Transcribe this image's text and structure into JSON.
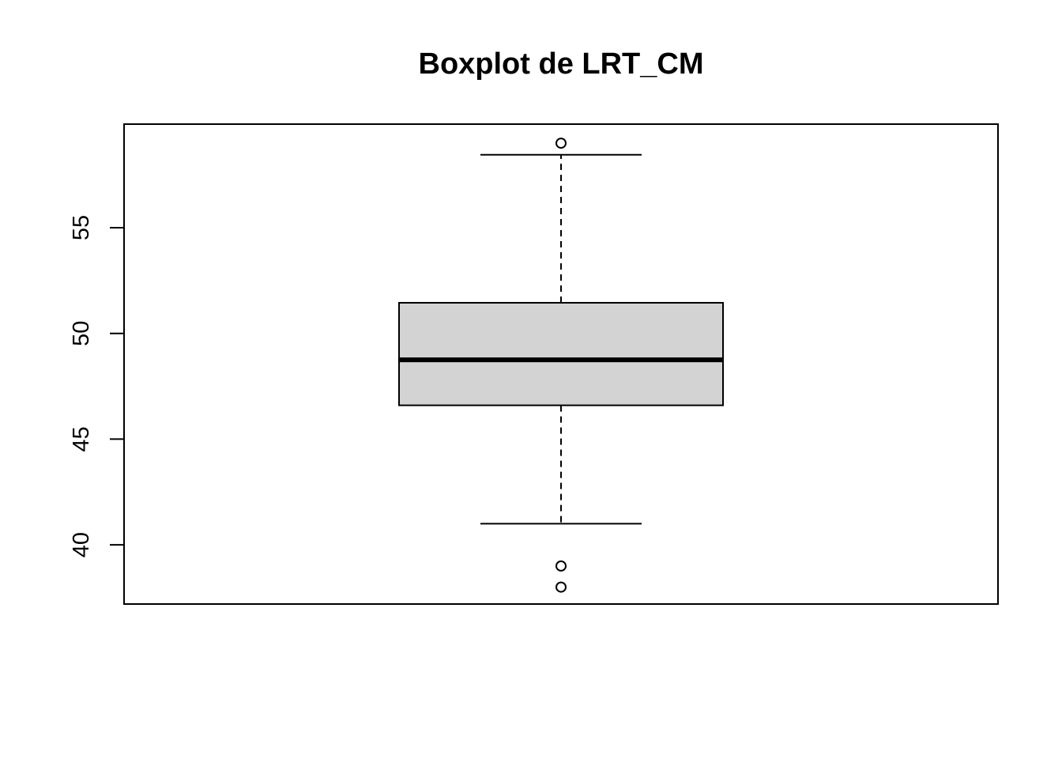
{
  "chart_data": {
    "type": "boxplot",
    "title": "Boxplot de LRT_CM",
    "xlabel": "",
    "ylabel": "",
    "ylim": [
      37.2,
      59.9
    ],
    "yticks": [
      40,
      45,
      50,
      55
    ],
    "ytick_labels": [
      "40",
      "45",
      "50",
      "55"
    ],
    "grid": false,
    "box": {
      "whisker_low": 41,
      "q1": 46.6,
      "median": 48.75,
      "q3": 51.45,
      "whisker_high": 58.45
    },
    "outliers": [
      59,
      39,
      38
    ],
    "colors": {
      "box_fill": "#d3d3d3",
      "stroke": "#000000",
      "background": "#ffffff"
    }
  }
}
